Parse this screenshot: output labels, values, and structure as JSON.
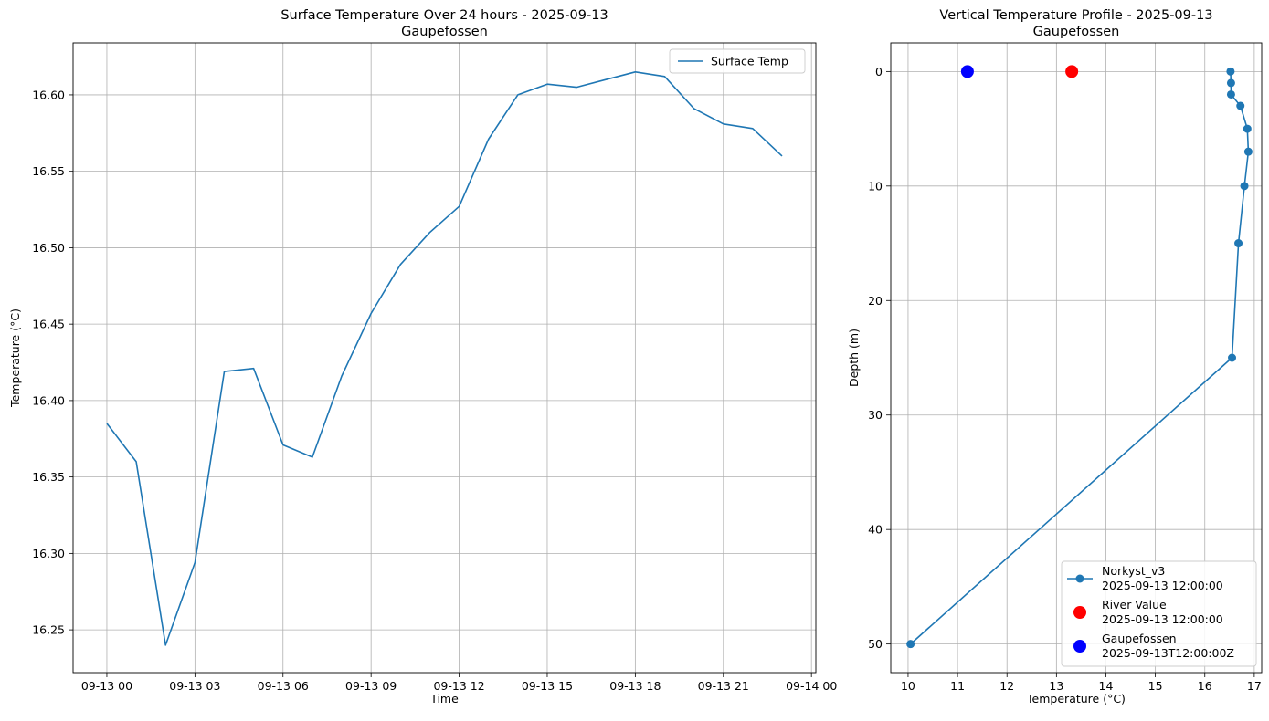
{
  "chart_data": [
    {
      "type": "line",
      "title": "Surface Temperature Over 24 hours - 2025-09-13",
      "subtitle": "Gaupefossen",
      "xlabel": "Time",
      "ylabel": "Temperature (°C)",
      "xlim": [
        -1.15,
        24.15
      ],
      "ylim": [
        16.222,
        16.634
      ],
      "grid": true,
      "legend_placement": "top-right",
      "x_ticks": [
        {
          "v": 0,
          "label": "09-13 00"
        },
        {
          "v": 3,
          "label": "09-13 03"
        },
        {
          "v": 6,
          "label": "09-13 06"
        },
        {
          "v": 9,
          "label": "09-13 09"
        },
        {
          "v": 12,
          "label": "09-13 12"
        },
        {
          "v": 15,
          "label": "09-13 15"
        },
        {
          "v": 18,
          "label": "09-13 18"
        },
        {
          "v": 21,
          "label": "09-13 21"
        },
        {
          "v": 24,
          "label": "09-14 00"
        }
      ],
      "y_ticks": [
        {
          "v": 16.25,
          "label": "16.25"
        },
        {
          "v": 16.3,
          "label": "16.30"
        },
        {
          "v": 16.35,
          "label": "16.35"
        },
        {
          "v": 16.4,
          "label": "16.40"
        },
        {
          "v": 16.45,
          "label": "16.45"
        },
        {
          "v": 16.5,
          "label": "16.50"
        },
        {
          "v": 16.55,
          "label": "16.55"
        },
        {
          "v": 16.6,
          "label": "16.60"
        }
      ],
      "series": [
        {
          "name": "Surface Temp",
          "color": "#1f77b4",
          "x": [
            "09-13 00:00",
            "09-13 01:00",
            "09-13 02:00",
            "09-13 03:00",
            "09-13 04:00",
            "09-13 05:00",
            "09-13 06:00",
            "09-13 07:00",
            "09-13 08:00",
            "09-13 09:00",
            "09-13 10:00",
            "09-13 11:00",
            "09-13 12:00",
            "09-13 13:00",
            "09-13 14:00",
            "09-13 15:00",
            "09-13 16:00",
            "09-13 17:00",
            "09-13 18:00",
            "09-13 19:00",
            "09-13 20:00",
            "09-13 21:00",
            "09-13 22:00",
            "09-13 23:00"
          ],
          "values": [
            16.385,
            16.36,
            16.24,
            16.294,
            16.419,
            16.421,
            16.371,
            16.363,
            16.416,
            16.457,
            16.489,
            16.51,
            16.527,
            16.571,
            16.6,
            16.607,
            16.605,
            16.61,
            16.615,
            16.612,
            16.591,
            16.581,
            16.578,
            16.56
          ]
        }
      ]
    },
    {
      "type": "line",
      "title": "Vertical Temperature Profile - 2025-09-13",
      "subtitle": "Gaupefossen",
      "xlabel": "Temperature (°C)",
      "ylabel": "Depth (m)",
      "xlim": [
        9.65,
        17.15
      ],
      "ylim": [
        52.5,
        -2.5
      ],
      "y_inverted": true,
      "grid": true,
      "legend_placement": "bottom-right",
      "x_ticks": [
        {
          "v": 10,
          "label": "10"
        },
        {
          "v": 11,
          "label": "11"
        },
        {
          "v": 12,
          "label": "12"
        },
        {
          "v": 13,
          "label": "13"
        },
        {
          "v": 14,
          "label": "14"
        },
        {
          "v": 15,
          "label": "15"
        },
        {
          "v": 16,
          "label": "16"
        },
        {
          "v": 17,
          "label": "17"
        }
      ],
      "y_ticks": [
        {
          "v": 0,
          "label": "0"
        },
        {
          "v": 10,
          "label": "10"
        },
        {
          "v": 20,
          "label": "20"
        },
        {
          "v": 30,
          "label": "30"
        },
        {
          "v": 40,
          "label": "40"
        },
        {
          "v": 50,
          "label": "50"
        }
      ],
      "series": [
        {
          "name": "Norkyst_v3",
          "legend_line2": "2025-09-13 12:00:00",
          "color": "#1f77b4",
          "style": "line-marker",
          "points": [
            {
              "temp": 16.52,
              "depth": 0
            },
            {
              "temp": 16.53,
              "depth": 1
            },
            {
              "temp": 16.53,
              "depth": 2
            },
            {
              "temp": 16.72,
              "depth": 3
            },
            {
              "temp": 16.86,
              "depth": 5
            },
            {
              "temp": 16.88,
              "depth": 7
            },
            {
              "temp": 16.8,
              "depth": 10
            },
            {
              "temp": 16.68,
              "depth": 15
            },
            {
              "temp": 16.55,
              "depth": 25
            },
            {
              "temp": 10.05,
              "depth": 50
            }
          ]
        },
        {
          "name": "River Value",
          "legend_line2": "2025-09-13 12:00:00",
          "color": "#ff0000",
          "style": "marker",
          "points": [
            {
              "temp": 13.31,
              "depth": 0
            }
          ]
        },
        {
          "name": "Gaupefossen",
          "legend_line2": "2025-09-13T12:00:00Z",
          "color": "#0000ff",
          "style": "marker",
          "points": [
            {
              "temp": 11.2,
              "depth": 0
            }
          ]
        }
      ]
    }
  ]
}
